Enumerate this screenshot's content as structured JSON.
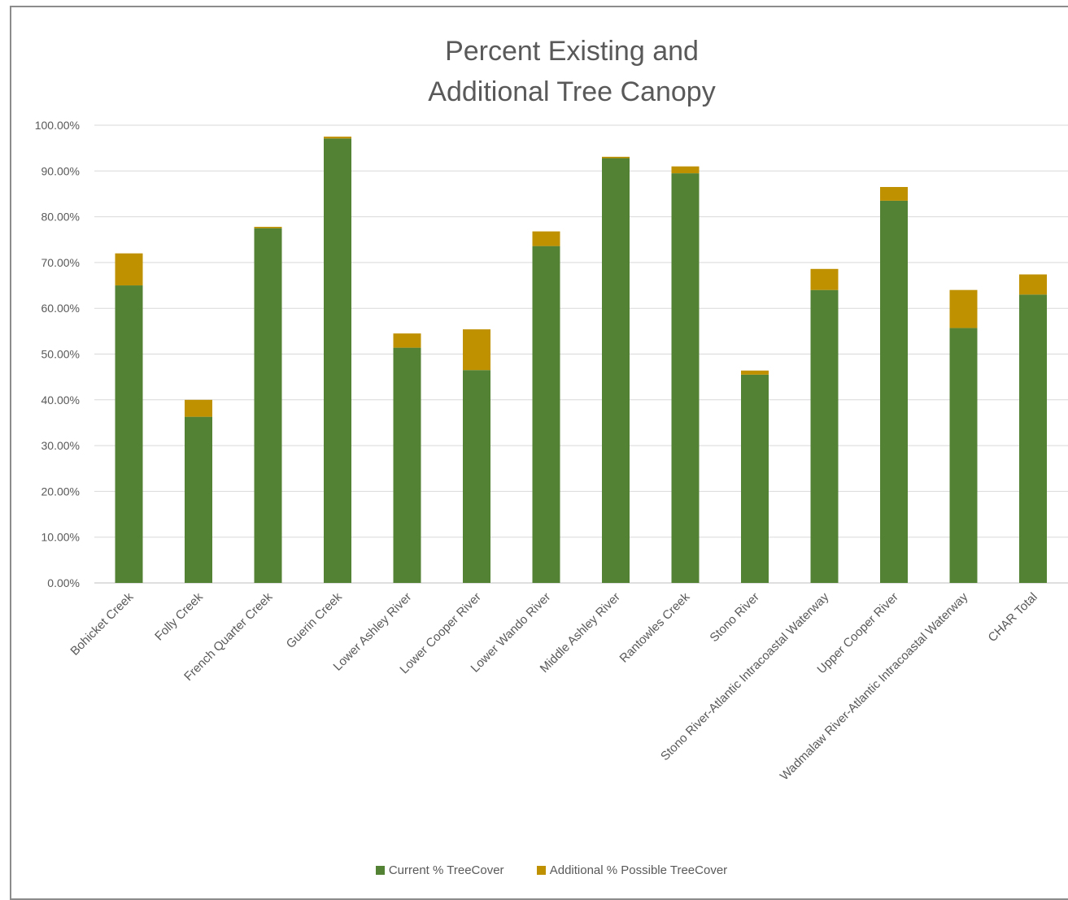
{
  "chart_data": {
    "type": "bar",
    "stacked": true,
    "title_lines": [
      "Percent Existing and",
      "Additional Tree Canopy"
    ],
    "xlabel": "",
    "ylabel": "",
    "ylim": [
      0,
      1
    ],
    "yticks": [
      0,
      0.1,
      0.2,
      0.3,
      0.4,
      0.5,
      0.6,
      0.7,
      0.8,
      0.9,
      1.0
    ],
    "ytick_labels": [
      "0.00%",
      "10.00%",
      "20.00%",
      "30.00%",
      "40.00%",
      "50.00%",
      "60.00%",
      "70.00%",
      "80.00%",
      "90.00%",
      "100.00%"
    ],
    "grid": true,
    "legend_position": "bottom",
    "categories": [
      "Bohicket Creek",
      "Folly Creek",
      "French Quarter Creek",
      "Guerin Creek",
      "Lower Ashley River",
      "Lower Cooper River",
      "Lower Wando River",
      "Middle Ashley River",
      "Rantowles Creek",
      "Stono River",
      "Stono River-Atlantic Intracoastal Waterway",
      "Upper Cooper River",
      "Wadmalaw River-Atlantic Intracoastal Waterway",
      "CHAR Total"
    ],
    "series": [
      {
        "name": "Current % TreeCover",
        "color": "#548235",
        "values": [
          0.65,
          0.363,
          0.775,
          0.971,
          0.514,
          0.465,
          0.736,
          0.928,
          0.895,
          0.455,
          0.64,
          0.835,
          0.557,
          0.63
        ]
      },
      {
        "name": "Additional % Possible TreeCover",
        "color": "#bf9000",
        "values": [
          0.07,
          0.037,
          0.003,
          0.004,
          0.031,
          0.089,
          0.032,
          0.003,
          0.015,
          0.009,
          0.046,
          0.03,
          0.083,
          0.044
        ]
      }
    ]
  }
}
